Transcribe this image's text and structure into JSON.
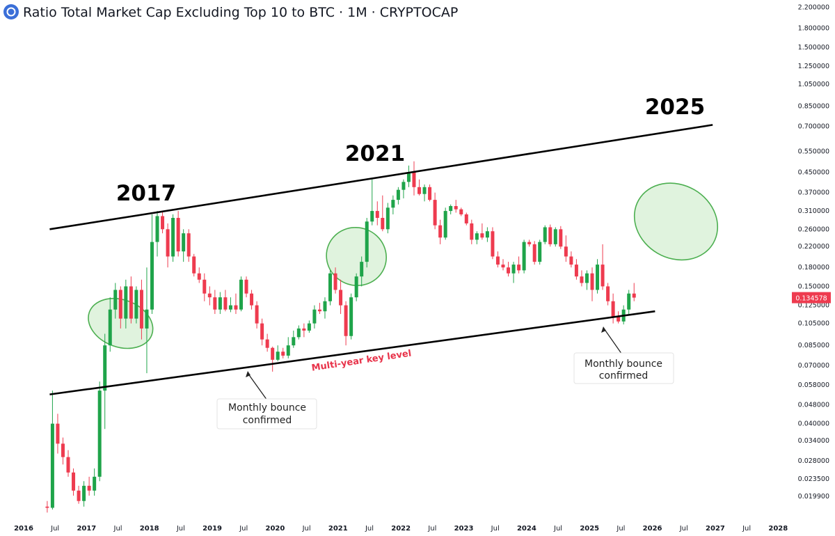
{
  "header": {
    "title": "Ratio Total Market Cap Excluding Top 10 to BTC · 1M · CRYPTOCAP"
  },
  "colors": {
    "up": "#1fa44a",
    "down": "#ee3b4f",
    "trend": "#000000",
    "ellipse_stroke": "#4caf50",
    "ellipse_fill": "#d6efd3",
    "price_tag": "#ee3b4f",
    "annotation_red": "#e8334a"
  },
  "chart_data": {
    "type": "candlestick",
    "title": "Ratio Total Market Cap Excluding Top 10 to BTC · 1M · CRYPTOCAP",
    "y_scale": "log",
    "ylim": [
      0.0175,
      2.3
    ],
    "xlim": [
      "2016-01",
      "2028-12"
    ],
    "y_ticks": [
      "2.200000",
      "1.800000",
      "1.500000",
      "1.250000",
      "1.050000",
      "0.850000",
      "0.700000",
      "0.550000",
      "0.450000",
      "0.370000",
      "0.310000",
      "0.260000",
      "0.220000",
      "0.180000",
      "0.150000",
      "0.125000",
      "0.105000",
      "0.085000",
      "0.070000",
      "0.058000",
      "0.048000",
      "0.040000",
      "0.034000",
      "0.028000",
      "0.023500",
      "0.019900"
    ],
    "x_ticks": [
      {
        "label": "2016",
        "date": "2016-01"
      },
      {
        "label": "Jul",
        "date": "2016-07"
      },
      {
        "label": "2017",
        "date": "2017-01"
      },
      {
        "label": "Jul",
        "date": "2017-07"
      },
      {
        "label": "2018",
        "date": "2018-01"
      },
      {
        "label": "Jul",
        "date": "2018-07"
      },
      {
        "label": "2019",
        "date": "2019-01"
      },
      {
        "label": "Jul",
        "date": "2019-07"
      },
      {
        "label": "2020",
        "date": "2020-01"
      },
      {
        "label": "Jul",
        "date": "2020-07"
      },
      {
        "label": "2021",
        "date": "2021-01"
      },
      {
        "label": "Jul",
        "date": "2021-07"
      },
      {
        "label": "2022",
        "date": "2022-01"
      },
      {
        "label": "Jul",
        "date": "2022-07"
      },
      {
        "label": "2023",
        "date": "2023-01"
      },
      {
        "label": "Jul",
        "date": "2023-07"
      },
      {
        "label": "2024",
        "date": "2024-01"
      },
      {
        "label": "Jul",
        "date": "2024-07"
      },
      {
        "label": "2025",
        "date": "2025-01"
      },
      {
        "label": "Jul",
        "date": "2025-07"
      },
      {
        "label": "2026",
        "date": "2026-01"
      },
      {
        "label": "Jul",
        "date": "2026-07"
      },
      {
        "label": "2027",
        "date": "2027-01"
      },
      {
        "label": "Jul",
        "date": "2027-07"
      },
      {
        "label": "2028",
        "date": "2028-01"
      },
      {
        "label": "Jul",
        "date": "2028-07"
      }
    ],
    "last_price": "0.134578",
    "series": [
      {
        "date": "2016-05",
        "o": 0.018,
        "h": 0.019,
        "l": 0.017,
        "c": 0.0178
      },
      {
        "date": "2016-06",
        "o": 0.0178,
        "h": 0.055,
        "l": 0.0175,
        "c": 0.04
      },
      {
        "date": "2016-07",
        "o": 0.04,
        "h": 0.044,
        "l": 0.03,
        "c": 0.033
      },
      {
        "date": "2016-08",
        "o": 0.033,
        "h": 0.035,
        "l": 0.027,
        "c": 0.029
      },
      {
        "date": "2016-09",
        "o": 0.029,
        "h": 0.031,
        "l": 0.024,
        "c": 0.025
      },
      {
        "date": "2016-10",
        "o": 0.025,
        "h": 0.026,
        "l": 0.02,
        "c": 0.021
      },
      {
        "date": "2016-11",
        "o": 0.021,
        "h": 0.022,
        "l": 0.0185,
        "c": 0.019
      },
      {
        "date": "2016-12",
        "o": 0.019,
        "h": 0.023,
        "l": 0.018,
        "c": 0.022
      },
      {
        "date": "2017-01",
        "o": 0.022,
        "h": 0.024,
        "l": 0.02,
        "c": 0.021
      },
      {
        "date": "2017-02",
        "o": 0.021,
        "h": 0.026,
        "l": 0.02,
        "c": 0.024
      },
      {
        "date": "2017-03",
        "o": 0.024,
        "h": 0.06,
        "l": 0.023,
        "c": 0.055
      },
      {
        "date": "2017-04",
        "o": 0.055,
        "h": 0.095,
        "l": 0.038,
        "c": 0.085
      },
      {
        "date": "2017-05",
        "o": 0.085,
        "h": 0.135,
        "l": 0.08,
        "c": 0.12
      },
      {
        "date": "2017-06",
        "o": 0.12,
        "h": 0.155,
        "l": 0.11,
        "c": 0.145
      },
      {
        "date": "2017-07",
        "o": 0.145,
        "h": 0.15,
        "l": 0.1,
        "c": 0.11
      },
      {
        "date": "2017-08",
        "o": 0.11,
        "h": 0.16,
        "l": 0.1,
        "c": 0.15
      },
      {
        "date": "2017-09",
        "o": 0.15,
        "h": 0.165,
        "l": 0.105,
        "c": 0.11
      },
      {
        "date": "2017-10",
        "o": 0.11,
        "h": 0.15,
        "l": 0.105,
        "c": 0.145
      },
      {
        "date": "2017-11",
        "o": 0.145,
        "h": 0.16,
        "l": 0.09,
        "c": 0.1
      },
      {
        "date": "2017-12",
        "o": 0.1,
        "h": 0.18,
        "l": 0.065,
        "c": 0.12
      },
      {
        "date": "2018-01",
        "o": 0.12,
        "h": 0.3,
        "l": 0.115,
        "c": 0.23
      },
      {
        "date": "2018-02",
        "o": 0.23,
        "h": 0.31,
        "l": 0.2,
        "c": 0.295
      },
      {
        "date": "2018-03",
        "o": 0.295,
        "h": 0.31,
        "l": 0.25,
        "c": 0.26
      },
      {
        "date": "2018-04",
        "o": 0.26,
        "h": 0.275,
        "l": 0.18,
        "c": 0.2
      },
      {
        "date": "2018-05",
        "o": 0.2,
        "h": 0.3,
        "l": 0.19,
        "c": 0.29
      },
      {
        "date": "2018-06",
        "o": 0.29,
        "h": 0.31,
        "l": 0.2,
        "c": 0.21
      },
      {
        "date": "2018-07",
        "o": 0.21,
        "h": 0.26,
        "l": 0.19,
        "c": 0.25
      },
      {
        "date": "2018-08",
        "o": 0.25,
        "h": 0.26,
        "l": 0.19,
        "c": 0.2
      },
      {
        "date": "2018-09",
        "o": 0.2,
        "h": 0.205,
        "l": 0.165,
        "c": 0.17
      },
      {
        "date": "2018-10",
        "o": 0.17,
        "h": 0.18,
        "l": 0.155,
        "c": 0.16
      },
      {
        "date": "2018-11",
        "o": 0.16,
        "h": 0.17,
        "l": 0.13,
        "c": 0.14
      },
      {
        "date": "2018-12",
        "o": 0.14,
        "h": 0.15,
        "l": 0.125,
        "c": 0.135
      },
      {
        "date": "2019-01",
        "o": 0.135,
        "h": 0.145,
        "l": 0.115,
        "c": 0.12
      },
      {
        "date": "2019-02",
        "o": 0.12,
        "h": 0.142,
        "l": 0.115,
        "c": 0.135
      },
      {
        "date": "2019-03",
        "o": 0.135,
        "h": 0.145,
        "l": 0.118,
        "c": 0.12
      },
      {
        "date": "2019-04",
        "o": 0.12,
        "h": 0.135,
        "l": 0.117,
        "c": 0.125
      },
      {
        "date": "2019-05",
        "o": 0.125,
        "h": 0.14,
        "l": 0.115,
        "c": 0.12
      },
      {
        "date": "2019-06",
        "o": 0.12,
        "h": 0.165,
        "l": 0.118,
        "c": 0.16
      },
      {
        "date": "2019-07",
        "o": 0.16,
        "h": 0.165,
        "l": 0.135,
        "c": 0.14
      },
      {
        "date": "2019-08",
        "o": 0.14,
        "h": 0.145,
        "l": 0.12,
        "c": 0.125
      },
      {
        "date": "2019-09",
        "o": 0.125,
        "h": 0.13,
        "l": 0.1,
        "c": 0.105
      },
      {
        "date": "2019-10",
        "o": 0.105,
        "h": 0.11,
        "l": 0.085,
        "c": 0.09
      },
      {
        "date": "2019-11",
        "o": 0.09,
        "h": 0.095,
        "l": 0.08,
        "c": 0.083
      },
      {
        "date": "2019-12",
        "o": 0.083,
        "h": 0.084,
        "l": 0.066,
        "c": 0.074
      },
      {
        "date": "2020-01",
        "o": 0.074,
        "h": 0.085,
        "l": 0.073,
        "c": 0.08
      },
      {
        "date": "2020-02",
        "o": 0.08,
        "h": 0.083,
        "l": 0.075,
        "c": 0.077
      },
      {
        "date": "2020-03",
        "o": 0.077,
        "h": 0.092,
        "l": 0.075,
        "c": 0.085
      },
      {
        "date": "2020-04",
        "o": 0.085,
        "h": 0.098,
        "l": 0.083,
        "c": 0.092
      },
      {
        "date": "2020-05",
        "o": 0.092,
        "h": 0.103,
        "l": 0.09,
        "c": 0.1
      },
      {
        "date": "2020-06",
        "o": 0.1,
        "h": 0.105,
        "l": 0.092,
        "c": 0.098
      },
      {
        "date": "2020-07",
        "o": 0.098,
        "h": 0.108,
        "l": 0.096,
        "c": 0.105
      },
      {
        "date": "2020-08",
        "o": 0.105,
        "h": 0.125,
        "l": 0.1,
        "c": 0.12
      },
      {
        "date": "2020-09",
        "o": 0.12,
        "h": 0.128,
        "l": 0.115,
        "c": 0.118
      },
      {
        "date": "2020-10",
        "o": 0.118,
        "h": 0.135,
        "l": 0.11,
        "c": 0.13
      },
      {
        "date": "2020-11",
        "o": 0.13,
        "h": 0.175,
        "l": 0.125,
        "c": 0.17
      },
      {
        "date": "2020-12",
        "o": 0.17,
        "h": 0.18,
        "l": 0.14,
        "c": 0.145
      },
      {
        "date": "2021-01",
        "o": 0.145,
        "h": 0.16,
        "l": 0.115,
        "c": 0.125
      },
      {
        "date": "2021-02",
        "o": 0.125,
        "h": 0.13,
        "l": 0.085,
        "c": 0.093
      },
      {
        "date": "2021-03",
        "o": 0.093,
        "h": 0.14,
        "l": 0.09,
        "c": 0.135
      },
      {
        "date": "2021-04",
        "o": 0.135,
        "h": 0.17,
        "l": 0.13,
        "c": 0.165
      },
      {
        "date": "2021-05",
        "o": 0.165,
        "h": 0.2,
        "l": 0.15,
        "c": 0.19
      },
      {
        "date": "2021-06",
        "o": 0.19,
        "h": 0.29,
        "l": 0.18,
        "c": 0.28
      },
      {
        "date": "2021-07",
        "o": 0.28,
        "h": 0.42,
        "l": 0.27,
        "c": 0.31
      },
      {
        "date": "2021-08",
        "o": 0.31,
        "h": 0.34,
        "l": 0.27,
        "c": 0.29
      },
      {
        "date": "2021-09",
        "o": 0.29,
        "h": 0.36,
        "l": 0.255,
        "c": 0.26
      },
      {
        "date": "2021-10",
        "o": 0.26,
        "h": 0.335,
        "l": 0.25,
        "c": 0.32
      },
      {
        "date": "2021-11",
        "o": 0.32,
        "h": 0.36,
        "l": 0.3,
        "c": 0.345
      },
      {
        "date": "2021-12",
        "o": 0.345,
        "h": 0.39,
        "l": 0.33,
        "c": 0.38
      },
      {
        "date": "2022-01",
        "o": 0.38,
        "h": 0.42,
        "l": 0.35,
        "c": 0.41
      },
      {
        "date": "2022-02",
        "o": 0.41,
        "h": 0.48,
        "l": 0.39,
        "c": 0.45
      },
      {
        "date": "2022-03",
        "o": 0.45,
        "h": 0.5,
        "l": 0.36,
        "c": 0.39
      },
      {
        "date": "2022-04",
        "o": 0.39,
        "h": 0.42,
        "l": 0.36,
        "c": 0.365
      },
      {
        "date": "2022-05",
        "o": 0.365,
        "h": 0.4,
        "l": 0.34,
        "c": 0.39
      },
      {
        "date": "2022-06",
        "o": 0.39,
        "h": 0.4,
        "l": 0.34,
        "c": 0.345
      },
      {
        "date": "2022-07",
        "o": 0.345,
        "h": 0.37,
        "l": 0.26,
        "c": 0.27
      },
      {
        "date": "2022-08",
        "o": 0.27,
        "h": 0.285,
        "l": 0.225,
        "c": 0.24
      },
      {
        "date": "2022-09",
        "o": 0.24,
        "h": 0.32,
        "l": 0.235,
        "c": 0.31
      },
      {
        "date": "2022-10",
        "o": 0.31,
        "h": 0.33,
        "l": 0.3,
        "c": 0.325
      },
      {
        "date": "2022-11",
        "o": 0.325,
        "h": 0.345,
        "l": 0.305,
        "c": 0.315
      },
      {
        "date": "2022-12",
        "o": 0.315,
        "h": 0.32,
        "l": 0.295,
        "c": 0.3
      },
      {
        "date": "2023-01",
        "o": 0.3,
        "h": 0.305,
        "l": 0.27,
        "c": 0.275
      },
      {
        "date": "2023-02",
        "o": 0.275,
        "h": 0.285,
        "l": 0.225,
        "c": 0.235
      },
      {
        "date": "2023-03",
        "o": 0.235,
        "h": 0.255,
        "l": 0.225,
        "c": 0.25
      },
      {
        "date": "2023-04",
        "o": 0.25,
        "h": 0.275,
        "l": 0.235,
        "c": 0.24
      },
      {
        "date": "2023-05",
        "o": 0.24,
        "h": 0.265,
        "l": 0.23,
        "c": 0.255
      },
      {
        "date": "2023-06",
        "o": 0.255,
        "h": 0.265,
        "l": 0.195,
        "c": 0.2
      },
      {
        "date": "2023-07",
        "o": 0.2,
        "h": 0.21,
        "l": 0.18,
        "c": 0.185
      },
      {
        "date": "2023-08",
        "o": 0.185,
        "h": 0.195,
        "l": 0.175,
        "c": 0.18
      },
      {
        "date": "2023-09",
        "o": 0.18,
        "h": 0.19,
        "l": 0.165,
        "c": 0.17
      },
      {
        "date": "2023-10",
        "o": 0.17,
        "h": 0.19,
        "l": 0.155,
        "c": 0.185
      },
      {
        "date": "2023-11",
        "o": 0.185,
        "h": 0.2,
        "l": 0.17,
        "c": 0.175
      },
      {
        "date": "2023-12",
        "o": 0.175,
        "h": 0.235,
        "l": 0.17,
        "c": 0.23
      },
      {
        "date": "2024-01",
        "o": 0.23,
        "h": 0.235,
        "l": 0.22,
        "c": 0.225
      },
      {
        "date": "2024-02",
        "o": 0.225,
        "h": 0.232,
        "l": 0.185,
        "c": 0.19
      },
      {
        "date": "2024-03",
        "o": 0.19,
        "h": 0.235,
        "l": 0.185,
        "c": 0.23
      },
      {
        "date": "2024-04",
        "o": 0.23,
        "h": 0.27,
        "l": 0.225,
        "c": 0.265
      },
      {
        "date": "2024-05",
        "o": 0.265,
        "h": 0.272,
        "l": 0.22,
        "c": 0.225
      },
      {
        "date": "2024-06",
        "o": 0.225,
        "h": 0.265,
        "l": 0.22,
        "c": 0.26
      },
      {
        "date": "2024-07",
        "o": 0.26,
        "h": 0.268,
        "l": 0.215,
        "c": 0.22
      },
      {
        "date": "2024-08",
        "o": 0.22,
        "h": 0.245,
        "l": 0.19,
        "c": 0.2
      },
      {
        "date": "2024-09",
        "o": 0.2,
        "h": 0.21,
        "l": 0.18,
        "c": 0.185
      },
      {
        "date": "2024-10",
        "o": 0.185,
        "h": 0.195,
        "l": 0.16,
        "c": 0.165
      },
      {
        "date": "2024-11",
        "o": 0.165,
        "h": 0.175,
        "l": 0.15,
        "c": 0.155
      },
      {
        "date": "2024-12",
        "o": 0.155,
        "h": 0.175,
        "l": 0.145,
        "c": 0.17
      },
      {
        "date": "2025-01",
        "o": 0.17,
        "h": 0.18,
        "l": 0.13,
        "c": 0.145
      },
      {
        "date": "2025-02",
        "o": 0.145,
        "h": 0.195,
        "l": 0.14,
        "c": 0.185
      },
      {
        "date": "2025-03",
        "o": 0.185,
        "h": 0.225,
        "l": 0.145,
        "c": 0.15
      },
      {
        "date": "2025-04",
        "o": 0.15,
        "h": 0.155,
        "l": 0.125,
        "c": 0.13
      },
      {
        "date": "2025-05",
        "o": 0.13,
        "h": 0.14,
        "l": 0.105,
        "c": 0.112
      },
      {
        "date": "2025-06",
        "o": 0.112,
        "h": 0.118,
        "l": 0.105,
        "c": 0.107
      },
      {
        "date": "2025-07",
        "o": 0.107,
        "h": 0.125,
        "l": 0.104,
        "c": 0.12
      },
      {
        "date": "2025-08",
        "o": 0.12,
        "h": 0.145,
        "l": 0.115,
        "c": 0.14
      },
      {
        "date": "2025-09",
        "o": 0.14,
        "h": 0.155,
        "l": 0.13,
        "c": 0.1346
      }
    ],
    "trendlines": [
      {
        "name": "upper",
        "from": {
          "date": "2016-06",
          "value": 0.26
        },
        "to": {
          "date": "2026-12",
          "value": 0.71
        }
      },
      {
        "name": "lower",
        "from": {
          "date": "2016-06",
          "value": 0.053
        },
        "to": {
          "date": "2026-01",
          "value": 0.118
        }
      }
    ],
    "highlight_ellipses": [
      {
        "center": {
          "date": "2017-07",
          "value": 0.105
        },
        "rx_months": 4.5,
        "ry_log": 0.64,
        "angle": -70
      },
      {
        "center": {
          "date": "2021-04",
          "value": 0.2
        },
        "rx_months": 5.5,
        "ry_log": 0.58,
        "angle": -68
      },
      {
        "center": {
          "date": "2026-05",
          "value": 0.28
        },
        "rx_months": 7,
        "ry_log": 0.83,
        "angle": -60
      }
    ],
    "annotations": {
      "year_2017": "2017",
      "year_2021": "2021",
      "year_2025": "2025",
      "key_level": "Multi-year key level",
      "bounce_line1": "Monthly bounce",
      "bounce_line2": "confirmed"
    }
  }
}
